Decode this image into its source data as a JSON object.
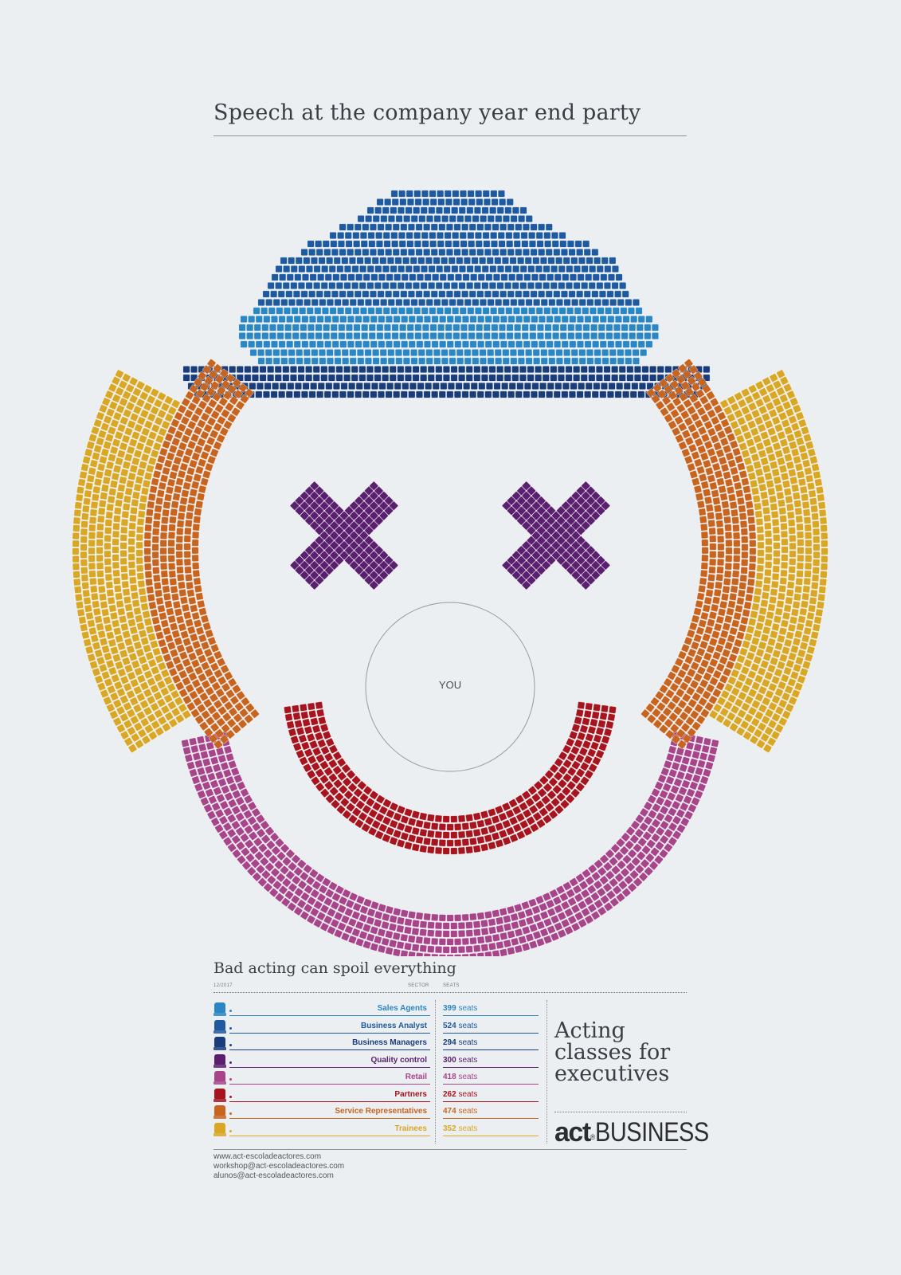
{
  "title": "Speech at the company year end party",
  "center_label": "YOU",
  "subtitle": "Bad acting can spoil everything",
  "table_header": {
    "date": "12/2017",
    "sector": "SECTOR",
    "seats": "SEATS"
  },
  "seats_unit": "seats",
  "legend": [
    {
      "sector": "Sales Agents",
      "seats": "399",
      "color": "#2a86c4"
    },
    {
      "sector": "Business Analyst",
      "seats": "524",
      "color": "#1e5aa0"
    },
    {
      "sector": "Business Managers",
      "seats": "294",
      "color": "#183d7a"
    },
    {
      "sector": "Quality control",
      "seats": "300",
      "color": "#5a1f6e"
    },
    {
      "sector": "Retail",
      "seats": "418",
      "color": "#a84489"
    },
    {
      "sector": "Partners",
      "seats": "262",
      "color": "#a8141e"
    },
    {
      "sector": "Service Representatives",
      "seats": "474",
      "color": "#c9641f"
    },
    {
      "sector": "Trainees",
      "seats": "352",
      "color": "#d9a724"
    }
  ],
  "slogan": [
    "Acting",
    "classes for",
    "executives"
  ],
  "brand": {
    "act": "act",
    "mark": "®",
    "business": "BUSINESS"
  },
  "contacts": [
    "www.act-escoladeactores.com",
    "workshop@act-escoladeactores.com",
    "alunos@act-escoladeactores.com"
  ]
}
